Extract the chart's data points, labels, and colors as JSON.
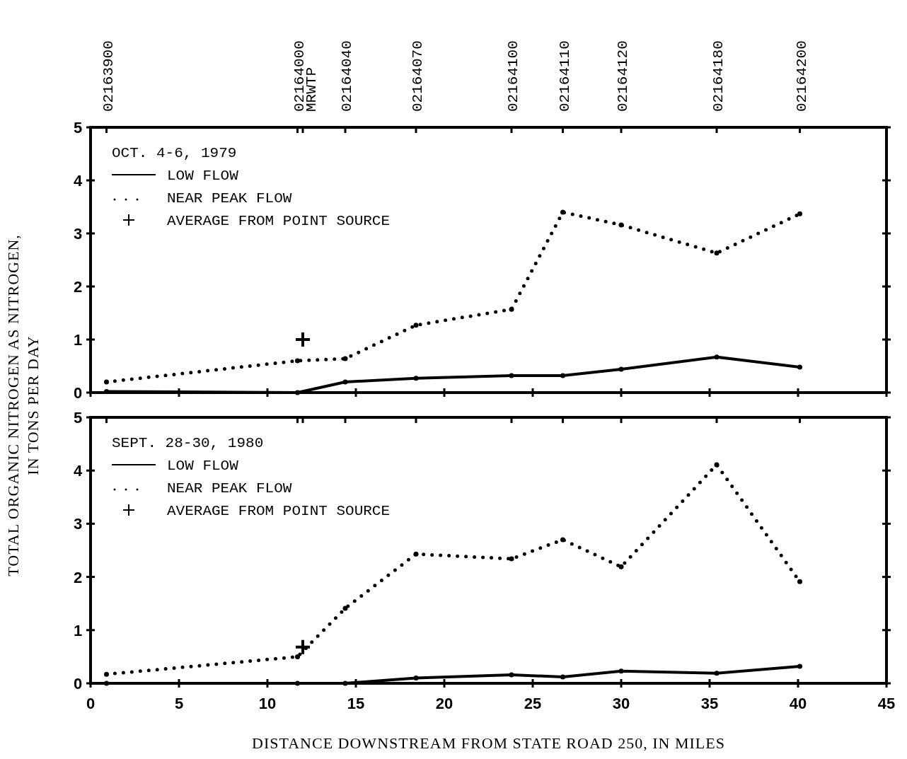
{
  "chart_data": [
    {
      "type": "line",
      "legend_title": "OCT. 4-6, 1979",
      "ylabel": "TOTAL ORGANIC NITROGEN AS NITROGEN,\nIN TONS PER DAY",
      "legend": "top left",
      "marker": "circle",
      "tick_labels": "y",
      "xlim": [
        0,
        45
      ],
      "xticks": [
        {
          "value": 0,
          "label": null
        },
        {
          "value": 5,
          "label": null
        },
        {
          "value": 10,
          "label": null
        },
        {
          "value": 15,
          "label": null
        },
        {
          "value": 20,
          "label": null
        },
        {
          "value": 25,
          "label": null
        },
        {
          "value": 30,
          "label": null
        },
        {
          "value": 35,
          "label": null
        },
        {
          "value": 40,
          "label": null
        },
        {
          "value": 45,
          "label": null
        }
      ],
      "annotations": [
        "02163900",
        "02164000",
        "MRWTP",
        "02164040",
        "02164070",
        "02164100",
        "02164110",
        "02164120",
        "02164180",
        "02164200"
      ],
      "ylim": [
        0,
        5
      ],
      "yticks": [
        0,
        1,
        2,
        3,
        4,
        5
      ],
      "series": [
        {
          "name": "LOW FLOW",
          "type": "line",
          "line_style": "solid",
          "color": "#000000",
          "x": [
            0.9,
            11.7,
            14.4,
            18.4,
            23.8,
            26.7,
            30,
            35.4,
            40.1
          ],
          "values": [
            0.02,
            0,
            0.2,
            0.27,
            0.32,
            0.32,
            0.44,
            0.67,
            0.48
          ]
        },
        {
          "name": "NEAR PEAK FLOW",
          "type": "line",
          "line_style": "dotted",
          "color": "#000000",
          "x": [
            0.9,
            11.7,
            14.4,
            18.4,
            23.8,
            26.7,
            30,
            35.4,
            40.1
          ],
          "values": [
            0.2,
            0.6,
            0.64,
            1.27,
            1.57,
            3.4,
            3.16,
            2.63,
            3.37
          ]
        },
        {
          "name": "AVERAGE FROM POINT SOURCE",
          "type": "scatter",
          "marker": "cross",
          "color": "#000000",
          "x": [
            12
          ],
          "values": [
            1.0
          ]
        }
      ]
    },
    {
      "type": "line",
      "legend_title": "SEPT. 28-30, 1980",
      "xlabel": "DISTANCE DOWNSTREAM FROM STATE ROAD 250, IN MILES",
      "legend": "top left",
      "marker": "circle",
      "xlim": [
        0,
        45
      ],
      "xticks": [
        0,
        5,
        10,
        15,
        20,
        25,
        30,
        35,
        40,
        45
      ],
      "ylim": [
        0,
        5
      ],
      "yticks": [
        0,
        1,
        2,
        3,
        4,
        5
      ],
      "series": [
        {
          "name": "LOW FLOW",
          "type": "line",
          "line_style": "solid",
          "color": "#000000",
          "x": [
            0.9,
            11.7,
            14.4,
            18.4,
            23.8,
            26.7,
            30,
            35.4,
            40.1
          ],
          "values": [
            0,
            0,
            0,
            0.1,
            0.16,
            0.12,
            0.23,
            0.19,
            0.32
          ]
        },
        {
          "name": "NEAR PEAK FLOW",
          "type": "line",
          "line_style": "dotted",
          "color": "#000000",
          "x": [
            0.9,
            11.7,
            14.4,
            18.4,
            23.8,
            26.7,
            30,
            35.4,
            40.1
          ],
          "values": [
            0.17,
            0.5,
            1.41,
            2.43,
            2.34,
            2.7,
            2.19,
            4.11,
            1.91
          ]
        },
        {
          "name": "AVERAGE FROM POINT SOURCE",
          "type": "scatter",
          "marker": "cross",
          "color": "#000000",
          "x": [
            12
          ],
          "values": [
            0.68
          ]
        }
      ]
    }
  ]
}
